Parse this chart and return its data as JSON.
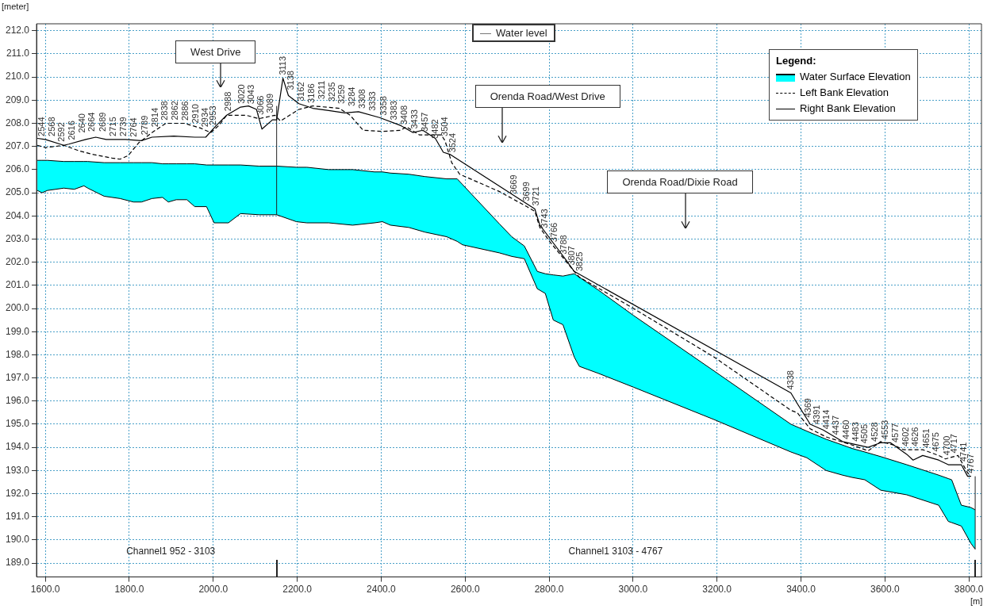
{
  "chart_data": {
    "type": "line",
    "xlabel": "[m]",
    "ylabel": "[meter]",
    "legend_title": "Legend:",
    "legend": "top right",
    "grid": true,
    "marker": "none",
    "xlim": [
      1579,
      3830
    ],
    "ylim": [
      188.4,
      212.3
    ],
    "xticks": [
      {
        "value": 1600,
        "label": "1600.0"
      },
      {
        "value": 1800,
        "label": "1800.0"
      },
      {
        "value": 2000,
        "label": "2000.0"
      },
      {
        "value": 2200,
        "label": "2200.0"
      },
      {
        "value": 2400,
        "label": "2400.0"
      },
      {
        "value": 2600,
        "label": "2600.0"
      },
      {
        "value": 2800,
        "label": "2800.0"
      },
      {
        "value": 3000,
        "label": "3000.0"
      },
      {
        "value": 3200,
        "label": "3200.0"
      },
      {
        "value": 3400,
        "label": "3400.0"
      },
      {
        "value": 3600,
        "label": "3600.0"
      },
      {
        "value": 3800,
        "label": "3800.0"
      }
    ],
    "yticks": [
      {
        "value": 189,
        "label": "189.0"
      },
      {
        "value": 190,
        "label": "190.0"
      },
      {
        "value": 191,
        "label": "191.0"
      },
      {
        "value": 192,
        "label": "192.0"
      },
      {
        "value": 193,
        "label": "193.0"
      },
      {
        "value": 194,
        "label": "194.0"
      },
      {
        "value": 195,
        "label": "195.0"
      },
      {
        "value": 196,
        "label": "196.0"
      },
      {
        "value": 197,
        "label": "197.0"
      },
      {
        "value": 198,
        "label": "198.0"
      },
      {
        "value": 199,
        "label": "199.0"
      },
      {
        "value": 200,
        "label": "200.0"
      },
      {
        "value": 201,
        "label": "201.0"
      },
      {
        "value": 202,
        "label": "202.0"
      },
      {
        "value": 203,
        "label": "203.0"
      },
      {
        "value": 204,
        "label": "204.0"
      },
      {
        "value": 205,
        "label": "205.0"
      },
      {
        "value": 206,
        "label": "206.0"
      },
      {
        "value": 207,
        "label": "207.0"
      },
      {
        "value": 208,
        "label": "208.0"
      },
      {
        "value": 209,
        "label": "209.0"
      },
      {
        "value": 210,
        "label": "210.0"
      },
      {
        "value": 211,
        "label": "211.0"
      },
      {
        "value": 212,
        "label": "212.0"
      }
    ],
    "series": [
      {
        "name": "Water Surface Elevation",
        "type": "area",
        "color": "#00ffff",
        "x": [
          1581,
          1592,
          1605,
          1644,
          1669,
          1692,
          1701,
          1740,
          1778,
          1810,
          1829,
          1854,
          1879,
          1893,
          1912,
          1937,
          1956,
          1984,
          2002,
          2036,
          2065,
          2109,
          2151,
          2198,
          2223,
          2275,
          2332,
          2384,
          2403,
          2422,
          2466,
          2504,
          2556,
          2581,
          2594,
          2682,
          2711,
          2741,
          2772,
          2791,
          2810,
          2833,
          2860,
          2872,
          2917,
          3001,
          3193,
          3376,
          3414,
          3460,
          3499,
          3522,
          3552,
          3590,
          3652,
          3728,
          3751,
          3759,
          3782,
          3805,
          3815
        ],
        "values": [
          206.4,
          206.4,
          206.4,
          206.35,
          206.35,
          206.35,
          206.35,
          206.3,
          206.3,
          206.3,
          206.3,
          206.3,
          206.25,
          206.25,
          206.25,
          206.25,
          206.25,
          206.2,
          206.2,
          206.2,
          206.2,
          206.15,
          206.15,
          206.1,
          206.1,
          206.0,
          206.0,
          205.9,
          205.9,
          205.85,
          205.8,
          205.7,
          205.6,
          205.6,
          205.35,
          203.65,
          203.1,
          202.7,
          201.6,
          201.5,
          201.45,
          201.4,
          201.5,
          201.35,
          200.8,
          199.7,
          197.3,
          195.0,
          194.7,
          194.35,
          194.1,
          193.95,
          193.8,
          193.6,
          193.25,
          192.8,
          192.65,
          192.6,
          191.5,
          191.4,
          191.3
        ]
      },
      {
        "color": "#000000",
        "line_style": "solid",
        "x": [
          1581,
          1592,
          1605,
          1644,
          1669,
          1692,
          1701,
          1740,
          1778,
          1810,
          1829,
          1854,
          1879,
          1893,
          1912,
          1937,
          1956,
          1984,
          2002,
          2036,
          2065,
          2109,
          2151,
          2198,
          2223,
          2275,
          2332,
          2384,
          2403,
          2422,
          2466,
          2504,
          2556,
          2581,
          2594,
          2682,
          2711,
          2741,
          2772,
          2791,
          2810,
          2833,
          2860,
          2872,
          2917,
          3001,
          3193,
          3376,
          3414,
          3460,
          3499,
          3522,
          3552,
          3590,
          3652,
          3728,
          3751,
          3759,
          3782,
          3805,
          3815
        ],
        "values": [
          205.1,
          205.0,
          205.1,
          205.2,
          205.15,
          205.3,
          205.2,
          204.85,
          204.75,
          204.6,
          204.6,
          204.75,
          204.8,
          204.6,
          204.7,
          204.7,
          204.4,
          204.4,
          203.7,
          203.7,
          204.1,
          204.05,
          204.05,
          203.75,
          203.7,
          203.7,
          203.6,
          203.7,
          203.75,
          203.6,
          203.5,
          203.3,
          203.1,
          202.9,
          202.75,
          202.4,
          202.25,
          202.15,
          200.85,
          200.65,
          199.5,
          199.3,
          197.9,
          197.5,
          197.2,
          196.6,
          195.2,
          193.8,
          193.55,
          193.0,
          192.8,
          192.7,
          192.6,
          192.15,
          191.95,
          191.5,
          190.8,
          190.75,
          190.6,
          189.85,
          189.6
        ]
      },
      {
        "name": "Left Bank Elevation",
        "line_style": "dashed",
        "color": "#000000",
        "x": [
          1581,
          1600,
          1644,
          1682,
          1715,
          1759,
          1778,
          1797,
          1822,
          1854,
          1887,
          1931,
          1969,
          1994,
          2013,
          2032,
          2078,
          2109,
          2147,
          2160,
          2204,
          2237,
          2300,
          2326,
          2357,
          2403,
          2447,
          2460,
          2491,
          2543,
          2552,
          2568,
          2587,
          2682,
          2747,
          2766,
          2778,
          2801,
          2860,
          2872,
          3001,
          3193,
          3376,
          3391,
          3422,
          3460,
          3522,
          3560,
          3590,
          3621,
          3644,
          3690,
          3728,
          3744,
          3774,
          3797,
          3805
        ],
        "values": [
          207.05,
          206.95,
          207.05,
          206.8,
          206.65,
          206.5,
          206.45,
          206.6,
          207.15,
          207.6,
          208.0,
          208.0,
          207.8,
          207.6,
          207.9,
          208.35,
          208.35,
          208.2,
          208.35,
          208.1,
          208.6,
          208.75,
          208.65,
          208.35,
          207.7,
          207.65,
          207.7,
          207.85,
          207.5,
          207.5,
          207.25,
          206.3,
          205.8,
          205.05,
          204.4,
          204.2,
          203.5,
          202.9,
          201.6,
          201.35,
          200.0,
          197.9,
          195.6,
          195.5,
          194.8,
          194.45,
          194.1,
          193.85,
          194.25,
          194.1,
          193.9,
          193.9,
          193.65,
          193.5,
          193.65,
          192.9,
          192.75
        ]
      },
      {
        "name": "Right Bank Elevation",
        "line_style": "solid",
        "color": "#000000",
        "x": [
          1581,
          1600,
          1644,
          1656,
          1696,
          1720,
          1745,
          1791,
          1829,
          1854,
          1906,
          1956,
          1982,
          2007,
          2032,
          2065,
          2084,
          2103,
          2116,
          2141,
          2151,
          2166,
          2179,
          2204,
          2237,
          2275,
          2313,
          2346,
          2396,
          2447,
          2476,
          2499,
          2529,
          2548,
          2565,
          2766,
          2778,
          2801,
          2840,
          2860,
          3376,
          3391,
          3422,
          3453,
          3499,
          3560,
          3590,
          3613,
          3652,
          3667,
          3690,
          3728,
          3751,
          3782,
          3797,
          3805
        ],
        "values": [
          207.35,
          207.3,
          207.05,
          207.1,
          207.3,
          207.4,
          207.3,
          207.3,
          207.25,
          207.4,
          207.45,
          207.4,
          207.4,
          207.9,
          208.35,
          208.7,
          208.75,
          208.6,
          207.75,
          208.15,
          208.15,
          209.95,
          209.2,
          208.85,
          208.65,
          208.55,
          208.45,
          208.5,
          208.25,
          207.9,
          207.6,
          207.7,
          207.35,
          206.75,
          206.65,
          204.3,
          203.6,
          203.05,
          202.1,
          201.6,
          196.35,
          195.9,
          195.0,
          194.75,
          194.25,
          194.0,
          194.2,
          194.2,
          193.7,
          193.45,
          193.65,
          193.45,
          193.25,
          193.25,
          192.75,
          192.75
        ]
      },
      {
        "color": "#222222",
        "line_style": "solid",
        "x": [
          2151,
          2151
        ],
        "values": [
          204.05,
          208.75
        ]
      },
      {
        "color": "#222222",
        "line_style": "solid",
        "x": [
          3815,
          3815
        ],
        "values": [
          189.6,
          192.75
        ]
      }
    ],
    "annotations": [
      "Water level",
      "West Drive",
      "Orenda Road/West Drive",
      "Orenda Road/Dixie Road",
      "Channel1 952 - 3103",
      "Channel1 3103 - 4767",
      {
        "text": "2544",
        "x": 1592,
        "y": 207.3
      },
      {
        "text": "2568",
        "x": 1616,
        "y": 207.3
      },
      {
        "text": "2592",
        "x": 1640,
        "y": 207.07
      },
      {
        "text": "2616",
        "x": 1664,
        "y": 207.14
      },
      {
        "text": "2640",
        "x": 1688,
        "y": 207.45
      },
      {
        "text": "2664",
        "x": 1712,
        "y": 207.5
      },
      {
        "text": "2689",
        "x": 1737,
        "y": 207.5
      },
      {
        "text": "2715",
        "x": 1763,
        "y": 207.3
      },
      {
        "text": "2739",
        "x": 1787,
        "y": 207.3
      },
      {
        "text": "2764",
        "x": 1812,
        "y": 207.27
      },
      {
        "text": "2789",
        "x": 1837,
        "y": 207.36
      },
      {
        "text": "2814",
        "x": 1862,
        "y": 207.7
      },
      {
        "text": "2838",
        "x": 1886,
        "y": 207.99
      },
      {
        "text": "2862",
        "x": 1910,
        "y": 208.0
      },
      {
        "text": "2886",
        "x": 1934,
        "y": 207.98
      },
      {
        "text": "2910",
        "x": 1958,
        "y": 207.86
      },
      {
        "text": "2934",
        "x": 1982,
        "y": 207.7
      },
      {
        "text": "2953",
        "x": 2001,
        "y": 207.78
      },
      {
        "text": "2988",
        "x": 2036,
        "y": 208.39
      },
      {
        "text": "3020",
        "x": 2068,
        "y": 208.71
      },
      {
        "text": "3043",
        "x": 2091,
        "y": 208.69
      },
      {
        "text": "3066",
        "x": 2114,
        "y": 208.22
      },
      {
        "text": "3089",
        "x": 2137,
        "y": 208.31
      },
      {
        "text": "3113",
        "x": 2166,
        "y": 209.95
      },
      {
        "text": "3138",
        "x": 2186,
        "y": 209.3
      },
      {
        "text": "3162",
        "x": 2210,
        "y": 208.81
      },
      {
        "text": "3186",
        "x": 2234,
        "y": 208.74
      },
      {
        "text": "3211",
        "x": 2259,
        "y": 208.9
      },
      {
        "text": "3235",
        "x": 2283,
        "y": 208.8
      },
      {
        "text": "3259",
        "x": 2307,
        "y": 208.7
      },
      {
        "text": "3284",
        "x": 2332,
        "y": 208.6
      },
      {
        "text": "3308",
        "x": 2356,
        "y": 208.5
      },
      {
        "text": "3333",
        "x": 2381,
        "y": 208.4
      },
      {
        "text": "3358",
        "x": 2406,
        "y": 208.2
      },
      {
        "text": "3383",
        "x": 2431,
        "y": 208.0
      },
      {
        "text": "3408",
        "x": 2456,
        "y": 207.8
      },
      {
        "text": "3433",
        "x": 2481,
        "y": 207.62
      },
      {
        "text": "3457",
        "x": 2505,
        "y": 207.5
      },
      {
        "text": "3482",
        "x": 2530,
        "y": 207.2
      },
      {
        "text": "3504",
        "x": 2552,
        "y": 207.3
      },
      {
        "text": "3524",
        "x": 2572,
        "y": 206.6
      },
      {
        "text": "3669",
        "x": 2717,
        "y": 204.8
      },
      {
        "text": "3699",
        "x": 2747,
        "y": 204.5
      },
      {
        "text": "3721",
        "x": 2769,
        "y": 204.3
      },
      {
        "text": "3743",
        "x": 2791,
        "y": 203.33
      },
      {
        "text": "3766",
        "x": 2814,
        "y": 202.73
      },
      {
        "text": "3788",
        "x": 2836,
        "y": 202.2
      },
      {
        "text": "3807",
        "x": 2855,
        "y": 201.73
      },
      {
        "text": "3825",
        "x": 2873,
        "y": 201.47
      },
      {
        "text": "4338",
        "x": 3376,
        "y": 196.35
      },
      {
        "text": "4369",
        "x": 3417,
        "y": 195.15
      },
      {
        "text": "4391",
        "x": 3439,
        "y": 194.86
      },
      {
        "text": "4414",
        "x": 3462,
        "y": 194.65
      },
      {
        "text": "4437",
        "x": 3485,
        "y": 194.4
      },
      {
        "text": "4460",
        "x": 3508,
        "y": 194.21
      },
      {
        "text": "4483",
        "x": 3531,
        "y": 194.12
      },
      {
        "text": "4505",
        "x": 3553,
        "y": 194.03
      },
      {
        "text": "4528",
        "x": 3576,
        "y": 194.11
      },
      {
        "text": "4553",
        "x": 3601,
        "y": 194.2
      },
      {
        "text": "4577",
        "x": 3625,
        "y": 194.07
      },
      {
        "text": "4602",
        "x": 3650,
        "y": 193.9
      },
      {
        "text": "4626",
        "x": 3674,
        "y": 193.9
      },
      {
        "text": "4651",
        "x": 3699,
        "y": 193.84
      },
      {
        "text": "4675",
        "x": 3723,
        "y": 193.68
      },
      {
        "text": "4700",
        "x": 3748,
        "y": 193.52
      },
      {
        "text": "4717",
        "x": 3765,
        "y": 193.61
      },
      {
        "text": "4741",
        "x": 3789,
        "y": 193.25
      },
      {
        "text": "4767",
        "x": 3805,
        "y": 192.75
      }
    ]
  }
}
